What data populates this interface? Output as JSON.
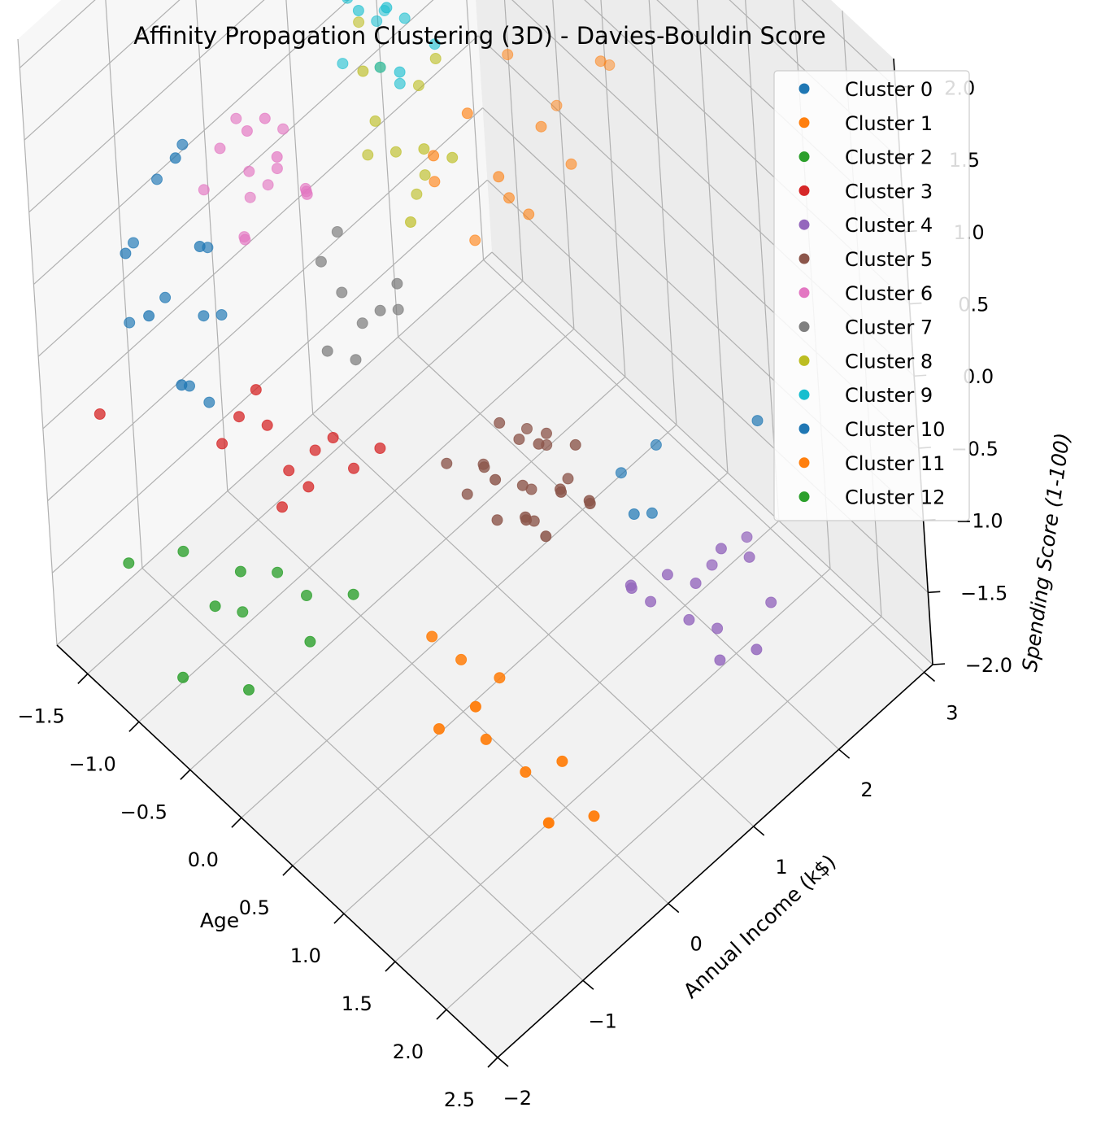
{
  "chart_data": {
    "type": "scatter3d",
    "title": "Affinity Propagation Clustering (3D) - Davies-Bouldin Score",
    "xlabel": "Age",
    "ylabel": "Annual Income (k$)",
    "zlabel": "Spending Score (1-100)",
    "xlim": [
      -1.8,
      2.5
    ],
    "ylim": [
      -2.0,
      3.1
    ],
    "zlim": [
      -2.0,
      2.2
    ],
    "x_ticks": [
      "−1.5",
      "−1.0",
      "−0.5",
      "0.0",
      "0.5",
      "1.0",
      "1.5",
      "2.0",
      "2.5"
    ],
    "y_ticks": [
      "−2",
      "−1",
      "0",
      "1",
      "2",
      "3"
    ],
    "z_ticks": [
      "−2.0",
      "−1.5",
      "−1.0",
      "−0.5",
      "0.0",
      "0.5",
      "1.0",
      "1.5",
      "2.0"
    ],
    "grid": true,
    "legend_position": "top-right",
    "series": [
      {
        "name": "Cluster 0",
        "color": "#1f77b4",
        "points": [
          [
            -1.3,
            -1.4,
            0.8
          ],
          [
            -1.2,
            -1.2,
            1.2
          ],
          [
            -1.1,
            -1.0,
            1.4
          ],
          [
            -1.0,
            -1.6,
            0.6
          ],
          [
            -0.9,
            -1.1,
            0.4
          ],
          [
            -1.3,
            -1.5,
            0.3
          ],
          [
            -1.2,
            -1.6,
            0.9
          ],
          [
            -0.8,
            -1.2,
            1.0
          ],
          [
            -0.9,
            -1.3,
            1.6
          ],
          [
            -1.0,
            -0.9,
            0.7
          ],
          [
            -0.8,
            -1.5,
            0.2
          ],
          [
            -1.1,
            -1.3,
            0.5
          ],
          [
            0.9,
            1.9,
            -0.9
          ],
          [
            0.8,
            1.6,
            -1.0
          ],
          [
            1.0,
            1.5,
            -1.1
          ],
          [
            1.5,
            2.4,
            -0.6
          ]
        ]
      },
      {
        "name": "Cluster 1",
        "color": "#ff7f0e",
        "points": [
          [
            -0.1,
            0.7,
            0.9
          ],
          [
            0.1,
            1.3,
            0.6
          ],
          [
            0.0,
            0.6,
            1.2
          ],
          [
            0.1,
            1.2,
            0.8
          ],
          [
            0.2,
            1.4,
            0.5
          ],
          [
            0.0,
            1.0,
            0.4
          ],
          [
            0.1,
            0.9,
            1.4
          ],
          [
            0.2,
            1.6,
            1.0
          ],
          [
            0.3,
            1.8,
            0.7
          ]
        ]
      },
      {
        "name": "Cluster 2",
        "color": "#2ca02c",
        "points": [
          [
            -0.8,
            -1.6,
            -0.9
          ],
          [
            -0.6,
            -1.5,
            -1.2
          ],
          [
            -0.5,
            -1.3,
            -1.0
          ],
          [
            -0.4,
            -1.0,
            -1.1
          ],
          [
            -0.3,
            -0.8,
            -1.3
          ],
          [
            -0.2,
            -0.9,
            -1.5
          ],
          [
            0.0,
            -0.6,
            -1.2
          ],
          [
            -0.7,
            -1.8,
            -1.6
          ],
          [
            -0.6,
            -1.2,
            -1.4
          ],
          [
            -0.4,
            -1.4,
            -1.7
          ],
          [
            -1.0,
            -2.0,
            -0.9
          ]
        ]
      },
      {
        "name": "Cluster 3",
        "color": "#d62728",
        "points": [
          [
            -0.3,
            -0.6,
            -0.4
          ],
          [
            -0.4,
            -0.8,
            -0.5
          ],
          [
            -0.2,
            -0.5,
            -0.3
          ],
          [
            -0.5,
            -0.9,
            -0.2
          ],
          [
            -0.3,
            -0.7,
            -0.6
          ],
          [
            -0.6,
            -1.1,
            -0.1
          ],
          [
            -0.1,
            -0.4,
            -0.5
          ],
          [
            -0.4,
            -0.9,
            -0.7
          ],
          [
            -0.7,
            -1.2,
            -0.3
          ],
          [
            -0.5,
            -1.0,
            0.1
          ],
          [
            0.0,
            -0.2,
            -0.4
          ],
          [
            -1.2,
            -2.0,
            0.0
          ]
        ]
      },
      {
        "name": "Cluster 4",
        "color": "#9467bd",
        "points": [
          [
            1.4,
            1.4,
            -1.2
          ],
          [
            1.5,
            1.6,
            -1.3
          ],
          [
            1.6,
            1.8,
            -1.1
          ],
          [
            1.3,
            1.3,
            -1.4
          ],
          [
            1.7,
            2.0,
            -1.2
          ],
          [
            1.5,
            1.5,
            -1.5
          ],
          [
            1.2,
            1.2,
            -1.3
          ],
          [
            1.6,
            1.7,
            -1.6
          ],
          [
            1.4,
            1.9,
            -1.4
          ],
          [
            1.8,
            2.1,
            -1.5
          ],
          [
            1.3,
            1.1,
            -1.2
          ],
          [
            1.7,
            1.6,
            -1.7
          ],
          [
            1.5,
            2.2,
            -1.3
          ],
          [
            1.9,
            1.8,
            -1.6
          ]
        ]
      },
      {
        "name": "Cluster 5",
        "color": "#8c564b",
        "points": [
          [
            0.6,
            0.3,
            -0.4
          ],
          [
            0.8,
            0.5,
            -0.5
          ],
          [
            0.7,
            0.6,
            -0.3
          ],
          [
            0.9,
            0.4,
            -0.6
          ],
          [
            1.0,
            0.7,
            -0.5
          ],
          [
            0.5,
            0.2,
            -0.6
          ],
          [
            0.8,
            0.8,
            -0.3
          ],
          [
            1.1,
            0.6,
            -0.4
          ],
          [
            0.7,
            0.3,
            -0.7
          ],
          [
            0.9,
            0.9,
            -0.6
          ],
          [
            0.6,
            0.5,
            -0.2
          ],
          [
            1.0,
            0.3,
            -0.5
          ],
          [
            0.4,
            0.1,
            -0.4
          ],
          [
            1.2,
            0.8,
            -0.5
          ],
          [
            0.8,
            0.2,
            -0.3
          ],
          [
            0.7,
            0.7,
            -0.7
          ],
          [
            0.9,
            0.6,
            -0.2
          ],
          [
            0.5,
            0.4,
            -0.5
          ],
          [
            1.1,
            0.4,
            -0.6
          ],
          [
            0.6,
            0.8,
            -0.4
          ],
          [
            1.0,
            0.9,
            -0.3
          ],
          [
            0.8,
            0.6,
            -0.8
          ],
          [
            1.3,
            0.7,
            -0.4
          ],
          [
            0.7,
            0.9,
            -0.5
          ]
        ]
      },
      {
        "name": "Cluster 6",
        "color": "#e377c2",
        "points": [
          [
            -0.9,
            -0.8,
            1.4
          ],
          [
            -0.8,
            -0.6,
            1.2
          ],
          [
            -0.7,
            -0.7,
            1.6
          ],
          [
            -1.0,
            -0.9,
            1.1
          ],
          [
            -0.6,
            -0.5,
            1.3
          ],
          [
            -0.8,
            -0.4,
            1.0
          ],
          [
            -0.7,
            -0.8,
            0.9
          ],
          [
            -0.9,
            -0.6,
            1.5
          ],
          [
            -0.5,
            -0.3,
            1.1
          ],
          [
            -0.6,
            -0.6,
            1.7
          ],
          [
            -0.8,
            -0.7,
            0.8
          ],
          [
            -0.4,
            -0.4,
            1.2
          ],
          [
            -0.7,
            -0.3,
            1.4
          ],
          [
            -0.9,
            -0.5,
            0.9
          ],
          [
            -0.5,
            -0.6,
            1.5
          ],
          [
            -0.6,
            -0.2,
            1.0
          ]
        ]
      },
      {
        "name": "Cluster 7",
        "color": "#7f7f7f",
        "points": [
          [
            -0.2,
            -0.3,
            0.6
          ],
          [
            -0.1,
            -0.2,
            0.4
          ],
          [
            -0.3,
            -0.4,
            0.8
          ],
          [
            0.0,
            -0.1,
            0.5
          ],
          [
            -0.2,
            -0.5,
            0.3
          ],
          [
            0.1,
            0.0,
            0.7
          ],
          [
            -0.1,
            -0.3,
            0.2
          ],
          [
            0.0,
            0.1,
            0.4
          ],
          [
            -0.3,
            -0.2,
            0.9
          ]
        ]
      },
      {
        "name": "Cluster 8",
        "color": "#bcbd22",
        "points": [
          [
            -0.3,
            0.3,
            1.4
          ],
          [
            -0.2,
            0.4,
            1.2
          ],
          [
            -0.4,
            0.5,
            1.6
          ],
          [
            -0.1,
            0.6,
            1.0
          ],
          [
            -0.3,
            0.2,
            1.8
          ],
          [
            0.0,
            0.5,
            1.3
          ],
          [
            -0.2,
            0.7,
            1.5
          ],
          [
            -0.4,
            0.3,
            1.1
          ],
          [
            -0.1,
            0.8,
            1.7
          ],
          [
            0.0,
            0.3,
            0.9
          ],
          [
            -0.5,
            0.4,
            1.9
          ],
          [
            -0.2,
            0.6,
            0.8
          ],
          [
            0.1,
            0.7,
            1.2
          ]
        ]
      },
      {
        "name": "Cluster 9",
        "color": "#17becf",
        "points": [
          [
            -0.6,
            0.4,
            2.0
          ],
          [
            -0.5,
            0.6,
            1.8
          ],
          [
            -0.4,
            0.3,
            2.1
          ],
          [
            -0.3,
            0.7,
            1.9
          ],
          [
            -0.6,
            0.8,
            1.7
          ],
          [
            -0.4,
            0.5,
            1.6
          ],
          [
            -0.2,
            0.4,
            2.2
          ],
          [
            -0.5,
            0.9,
            2.0
          ],
          [
            -0.3,
            0.6,
            1.5
          ],
          [
            -0.7,
            0.5,
            1.9
          ],
          [
            -0.1,
            0.8,
            1.8
          ],
          [
            -0.4,
            0.9,
            2.1
          ],
          [
            -0.2,
            0.5,
            1.7
          ],
          [
            -0.6,
            0.3,
            1.6
          ]
        ]
      },
      {
        "name": "Cluster 10",
        "color": "#1f77b4",
        "points": [
          [
            -1.0,
            -1.2,
            -0.1
          ],
          [
            -0.9,
            -1.1,
            -0.2
          ],
          [
            1.0,
            1.7,
            -1.2
          ],
          [
            -0.9,
            -0.9,
            0.3
          ]
        ]
      },
      {
        "name": "Cluster 11",
        "color": "#ff7f0e",
        "points": [
          [
            0.8,
            -0.6,
            -1.6
          ],
          [
            1.0,
            -0.3,
            -1.7
          ],
          [
            1.2,
            -0.1,
            -1.9
          ],
          [
            1.5,
            -0.2,
            -2.0
          ],
          [
            1.4,
            0.1,
            -1.8
          ],
          [
            0.7,
            -0.2,
            -1.4
          ],
          [
            1.1,
            -0.5,
            -1.3
          ],
          [
            0.9,
            0.0,
            -1.5
          ],
          [
            1.6,
            0.2,
            -2.1
          ],
          [
            0.6,
            -0.4,
            -1.2
          ],
          [
            -0.2,
            1.9,
            1.6
          ],
          [
            0.2,
            2.4,
            1.0
          ],
          [
            -0.1,
            1.6,
            1.3
          ],
          [
            0.3,
            2.2,
            1.2
          ],
          [
            0.0,
            2.0,
            0.8
          ]
        ]
      },
      {
        "name": "Cluster 12",
        "color": "#2ca02c",
        "points": [
          [
            -0.8,
            1.0,
            2.0
          ],
          [
            -1.0,
            1.5,
            2.2
          ],
          [
            -0.9,
            1.3,
            1.9
          ],
          [
            -0.7,
            1.2,
            2.1
          ],
          [
            -1.1,
            1.6,
            2.0
          ],
          [
            -0.6,
            0.9,
            1.8
          ]
        ]
      }
    ]
  }
}
